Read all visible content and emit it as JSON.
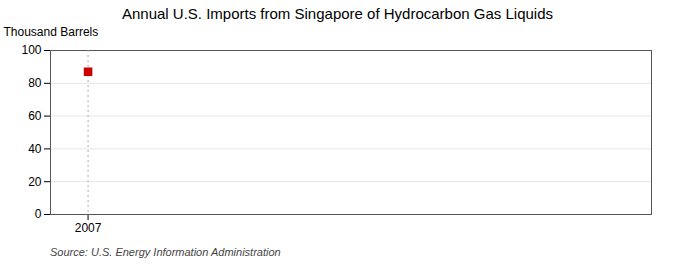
{
  "chart_data": {
    "type": "scatter",
    "title": "Annual U.S. Imports from Singapore of Hydrocarbon Gas Liquids",
    "ylabel": "Thousand Barrels",
    "source": "Source: U.S. Energy Information Administration",
    "x": [
      2007
    ],
    "values": [
      87
    ],
    "color": "#cc0000",
    "marker": "square",
    "xlim": [
      2006.4,
      2016
    ],
    "xticks": [
      2007
    ],
    "ylim": [
      0,
      100
    ],
    "yticks": [
      0,
      20,
      40,
      60,
      80,
      100
    ],
    "grid": true,
    "vline": {
      "x": 2007,
      "color": "#aaaaaa",
      "line_style": "dotted"
    }
  }
}
